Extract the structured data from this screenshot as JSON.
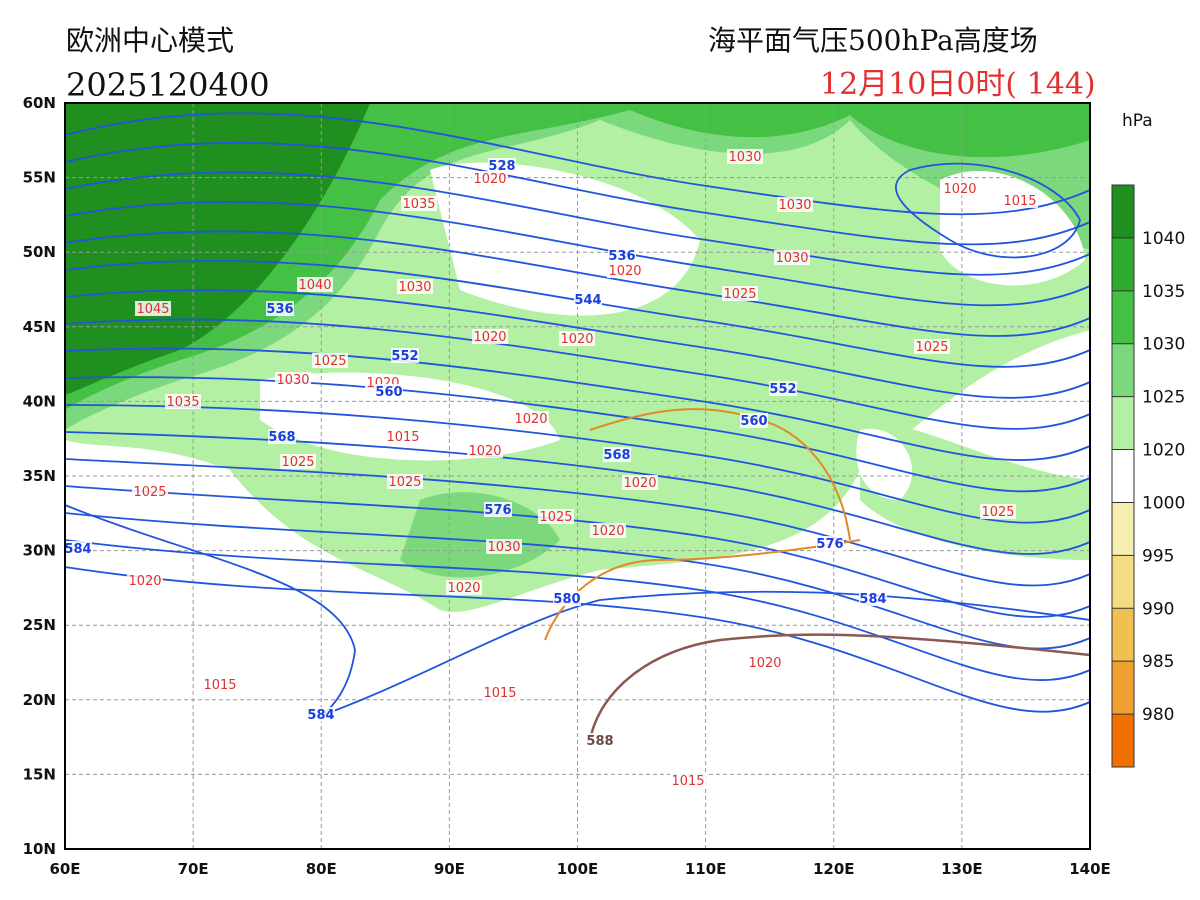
{
  "header": {
    "model": "欧洲中心模式",
    "init": "2025120400",
    "product": "海平面气压500hPa高度场",
    "valid": "12月10日0时( 144)"
  },
  "map": {
    "lon_labels": [
      "60E",
      "70E",
      "80E",
      "90E",
      "100E",
      "110E",
      "120E",
      "130E",
      "140E"
    ],
    "lat_labels": [
      "60N",
      "55N",
      "50N",
      "45N",
      "40N",
      "35N",
      "30N",
      "25N",
      "20N",
      "15N",
      "10N"
    ]
  },
  "colorbar": {
    "unit": "hPa",
    "levels": [
      "1040",
      "1035",
      "1030",
      "1025",
      "1020",
      "1000",
      "995",
      "990",
      "985",
      "980"
    ]
  },
  "pressure_labels": [
    "1045",
    "1040",
    "1035",
    "1030",
    "1025",
    "1030",
    "1020",
    "1035",
    "1025",
    "1025",
    "1015",
    "1020",
    "1025",
    "1020",
    "1020",
    "1020",
    "1020",
    "1025",
    "1030",
    "1030",
    "1030",
    "1020",
    "1015",
    "1025",
    "1025",
    "1020",
    "1020",
    "1025",
    "1030",
    "1020",
    "1020",
    "1015",
    "1015",
    "1015",
    "1020",
    "1020"
  ],
  "height_labels": [
    "528",
    "536",
    "544",
    "536",
    "552",
    "560",
    "568",
    "568",
    "576",
    "560",
    "552",
    "576",
    "580",
    "584",
    "584",
    "584",
    "588"
  ]
}
